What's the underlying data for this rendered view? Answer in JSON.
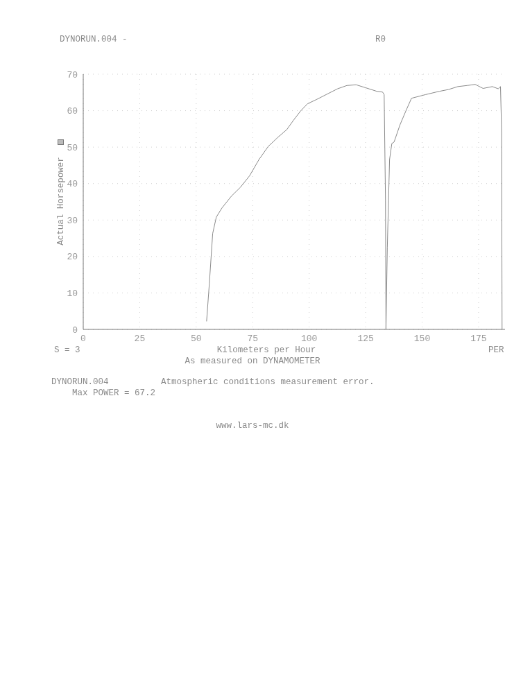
{
  "chart_data": {
    "type": "line",
    "title": "DYNORUN.004 -",
    "subtitle": "R0",
    "xlabel": "Kilometers per Hour",
    "ylabel": "Actual Horsepower",
    "annotations": [
      "S = 3",
      "PER",
      "As measured on DYNAMOMETER",
      "DYNORUN.004",
      "Atmospheric conditions measurement error.",
      "Max POWER = 67.2",
      "www.lars-mc.dk"
    ],
    "xlim": [
      0,
      187
    ],
    "xticks": [
      0,
      25,
      50,
      75,
      100,
      125,
      150,
      175
    ],
    "ylim": [
      0,
      70
    ],
    "yticks": [
      0,
      10,
      20,
      30,
      40,
      50,
      60,
      70
    ],
    "grid": true,
    "marker": "none",
    "line_style": "solid",
    "series": [
      {
        "color": "#8a8a8a",
        "x": [
          54.6,
          55.8,
          57.3,
          58.9,
          61.4,
          65.5,
          69.6,
          73.7,
          77.8,
          81.9,
          86.0,
          90.1,
          93.1,
          96.2,
          99.3,
          103.4,
          107.5,
          112.6,
          116.7,
          120.8,
          124.9,
          130.0,
          132.5,
          133.2,
          133.8,
          134.0,
          134.6,
          135.6,
          136.6,
          137.6,
          140.2,
          142.8,
          145.3,
          151.5,
          157.6,
          161.7,
          165.8,
          169.9,
          173.5,
          177.0,
          181.1,
          183.7,
          184.7,
          185.2,
          185.4
        ],
        "values": [
          2.2,
          12.4,
          26.3,
          30.8,
          33.3,
          36.5,
          39.0,
          42.2,
          46.6,
          50.2,
          52.6,
          54.8,
          57.4,
          59.9,
          61.9,
          63.1,
          64.4,
          66.0,
          66.9,
          67.1,
          66.3,
          65.3,
          65.1,
          64.4,
          35.2,
          0,
          22.5,
          46.6,
          51.0,
          51.4,
          56.1,
          59.9,
          63.4,
          64.4,
          65.3,
          65.8,
          66.6,
          66.9,
          67.2,
          66.1,
          66.6,
          66.0,
          66.6,
          54.2,
          0
        ]
      }
    ]
  }
}
